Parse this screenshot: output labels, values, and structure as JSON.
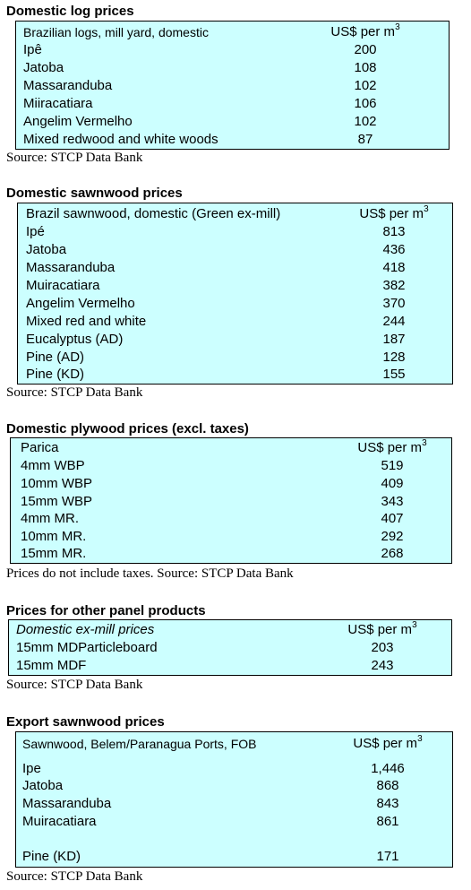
{
  "domestic_log": {
    "title": "Domestic log prices",
    "header": {
      "label": "Brazilian logs, mill yard, domestic",
      "unit": "US$ per m",
      "unit_sup": "3"
    },
    "rows": [
      {
        "name": "Ipê",
        "value": "200"
      },
      {
        "name": "Jatoba",
        "value": "108"
      },
      {
        "name": "Massaranduba",
        "value": "102"
      },
      {
        "name": "Miiracatiara",
        "value": "106"
      },
      {
        "name": "Angelim Vermelho",
        "value": "102"
      },
      {
        "name": "Mixed redwood and white woods",
        "value": "87"
      }
    ],
    "source": "Source: STCP Data Bank"
  },
  "domestic_sawnwood": {
    "title": "Domestic sawnwood prices",
    "header": {
      "label": "Brazil sawnwood, domestic (Green ex-mill)",
      "unit": "US$ per m",
      "unit_sup": "3"
    },
    "rows": [
      {
        "name": "Ipé",
        "value": "813"
      },
      {
        "name": "Jatoba",
        "value": "436"
      },
      {
        "name": "Massaranduba",
        "value": "418"
      },
      {
        "name": "Muiracatiara",
        "value": "382"
      },
      {
        "name": "Angelim Vermelho",
        "value": "370"
      },
      {
        "name": "Mixed red and white",
        "value": "244"
      },
      {
        "name": "Eucalyptus (AD)",
        "value": "187"
      },
      {
        "name": "Pine (AD)",
        "value": "128"
      },
      {
        "name": "Pine (KD)",
        "value": "155"
      }
    ],
    "source": "Source: STCP Data Bank"
  },
  "domestic_plywood": {
    "title": "Domestic plywood prices (excl. taxes)",
    "header": {
      "label": "Parica",
      "unit": "US$ per m",
      "unit_sup": "3"
    },
    "rows": [
      {
        "name": "4mm WBP",
        "value": "519"
      },
      {
        "name": "10mm WBP",
        "value": "409"
      },
      {
        "name": "15mm WBP",
        "value": "343"
      },
      {
        "name": "4mm MR.",
        "value": "407"
      },
      {
        "name": "10mm MR.",
        "value": "292"
      },
      {
        "name": "15mm MR.",
        "value": "268"
      }
    ],
    "source": "Prices do not include taxes. Source: STCP Data Bank"
  },
  "other_panel": {
    "title": "Prices for other panel products",
    "header": {
      "label": "Domestic ex-mill prices",
      "unit": "US$ per m",
      "unit_sup": "3"
    },
    "rows": [
      {
        "name": "15mm MDParticleboard",
        "value": "203"
      },
      {
        "name": "15mm MDF",
        "value": "243"
      }
    ],
    "source": "Source: STCP Data Bank"
  },
  "export_sawnwood": {
    "title": "Export sawnwood prices",
    "header": {
      "label": "Sawnwood, Belem/Paranagua Ports, FOB",
      "unit": "US$ per m",
      "unit_sup": "3"
    },
    "rows": [
      {
        "name": "Ipe",
        "value": "1,446"
      },
      {
        "name": "Jatoba",
        "value": "868"
      },
      {
        "name": "Massaranduba",
        "value": "843"
      },
      {
        "name": "Muiracatiara",
        "value": "861"
      },
      {
        "name": "Pine (KD)",
        "value": "171"
      }
    ],
    "source": "Source: STCP Data Bank"
  }
}
